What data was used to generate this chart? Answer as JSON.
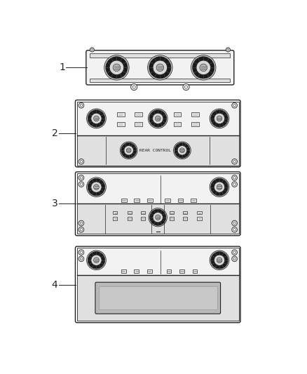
{
  "background_color": "#ffffff",
  "line_color": "#222222",
  "labels": [
    "1",
    "2",
    "3",
    "4"
  ],
  "rear_control_text": "REAR CONTROL",
  "panel_light": "#f2f2f2",
  "panel_mid": "#e0e0e0",
  "panel_dark": "#c8c8c8",
  "knob_outer": "#d5d5d5",
  "knob_ring": "#888888",
  "knob_black": "#1a1a1a",
  "knob_inner_light": "#aaaaaa",
  "tab_fill": "#e8e8e8"
}
